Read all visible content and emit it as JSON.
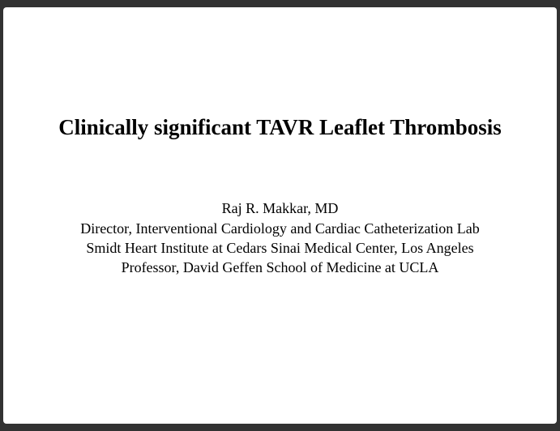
{
  "slide": {
    "title": "Clinically significant TAVR Leaflet Thrombosis",
    "author_name": "Raj R. Makkar, MD",
    "affiliation_1": "Director, Interventional Cardiology and Cardiac Catheterization Lab",
    "affiliation_2": "Smidt Heart Institute at Cedars Sinai Medical Center, Los Angeles",
    "affiliation_3": "Professor,  David Geffen School of Medicine at UCLA",
    "background_color": "#ffffff",
    "page_background": "#323232",
    "title_fontsize": 27,
    "body_fontsize": 18,
    "title_color": "#000000",
    "body_color": "#000000"
  }
}
